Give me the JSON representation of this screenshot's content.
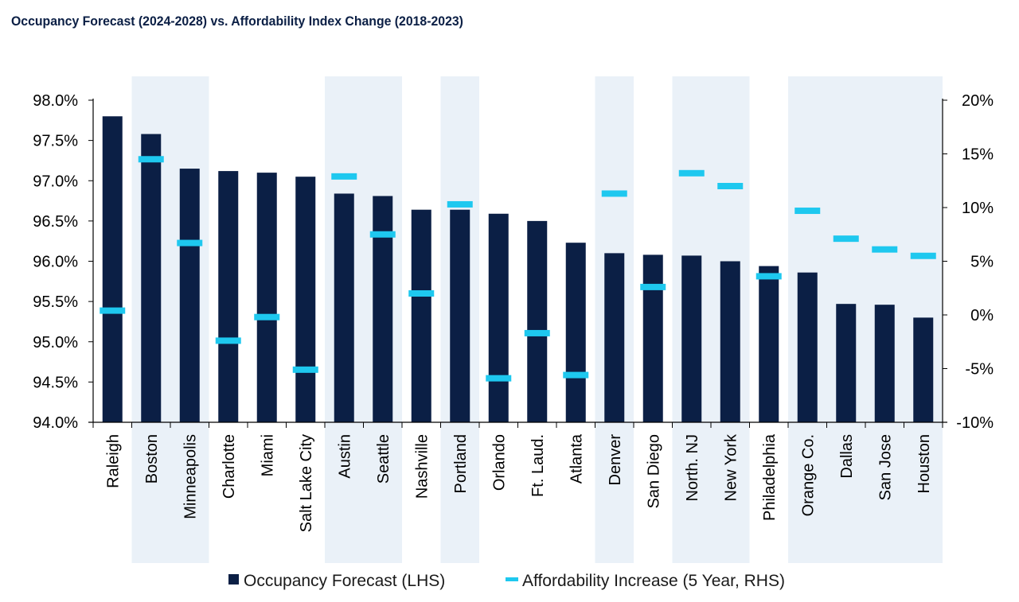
{
  "colors": {
    "bar": "#0b1f45",
    "marker": "#1ec8ef",
    "band": "#eaf1f8",
    "axis": "#000000"
  },
  "chart_data": {
    "type": "bar",
    "title": "Occupancy Forecast (2024-2028) vs. Affordability Index Change (2018-2023)",
    "categories": [
      "Raleigh",
      "Boston",
      "Minneapolis",
      "Charlotte",
      "Miami",
      "Salt Lake City",
      "Austin",
      "Seattle",
      "Nashville",
      "Portland",
      "Orlando",
      "Ft. Laud.",
      "Atlanta",
      "Denver",
      "San Diego",
      "North. NJ",
      "New York",
      "Philadelphia",
      "Orange Co.",
      "Dallas",
      "San Jose",
      "Houston"
    ],
    "series": [
      {
        "name": "Occupancy Forecast (LHS)",
        "axis": "left",
        "type": "bar",
        "values": [
          97.8,
          97.58,
          97.15,
          97.12,
          97.1,
          97.05,
          96.84,
          96.81,
          96.64,
          96.64,
          96.59,
          96.5,
          96.23,
          96.1,
          96.08,
          96.07,
          96.0,
          95.94,
          95.86,
          95.47,
          95.46,
          95.3
        ]
      },
      {
        "name": "Affordability Increase (5 Year, RHS)",
        "axis": "right",
        "type": "marker",
        "values": [
          0.4,
          14.5,
          6.7,
          -2.4,
          -0.2,
          -5.1,
          12.9,
          7.5,
          2.0,
          10.3,
          -5.9,
          -1.7,
          -5.6,
          11.3,
          2.6,
          13.2,
          12.0,
          3.6,
          9.7,
          7.1,
          6.1,
          5.5
        ]
      }
    ],
    "y_left": {
      "min": 94.0,
      "max": 98.0,
      "step": 0.5,
      "ticks": [
        "94.0%",
        "94.5%",
        "95.0%",
        "95.5%",
        "96.0%",
        "96.5%",
        "97.0%",
        "97.5%",
        "98.0%"
      ]
    },
    "y_right": {
      "min": -10,
      "max": 20,
      "step": 5,
      "ticks": [
        "-10%",
        "-5%",
        "0%",
        "5%",
        "10%",
        "15%",
        "20%"
      ]
    },
    "bands": [
      [
        1,
        2
      ],
      [
        6,
        7
      ],
      [
        9,
        9
      ],
      [
        13,
        13
      ],
      [
        15,
        16
      ],
      [
        18,
        21
      ]
    ],
    "grid": false,
    "legend_position": "bottom"
  }
}
